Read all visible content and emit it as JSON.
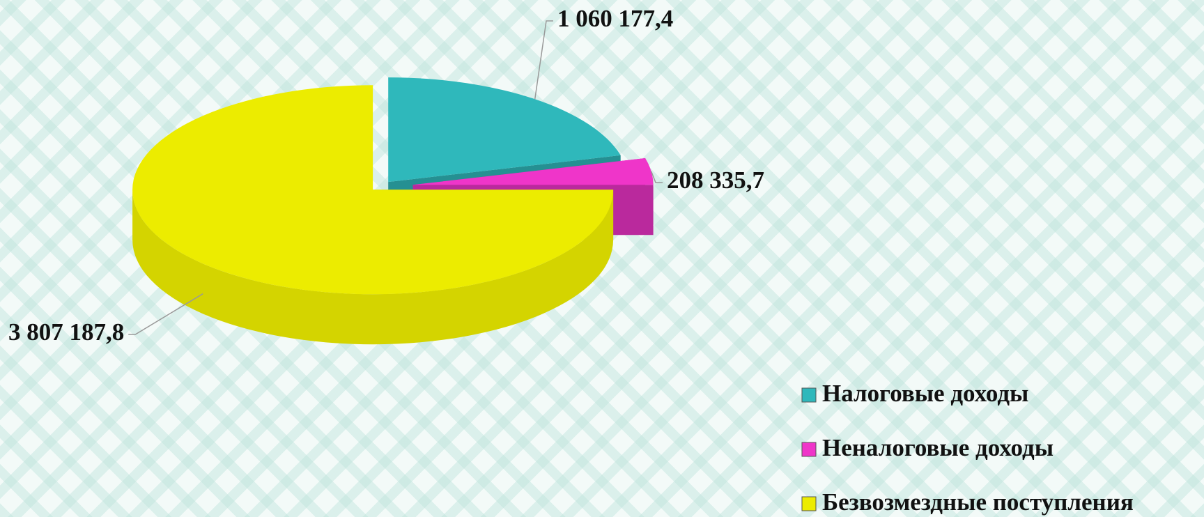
{
  "chart_data": {
    "type": "pie",
    "categories": [
      "Налоговые доходы",
      "Неналоговые доходы",
      "Безвозмездные поступления"
    ],
    "values": [
      1060177.4,
      208335.7,
      3807187.8
    ],
    "value_labels": [
      "1 060 177,4",
      "208 335,7",
      "3 807 187,8"
    ],
    "colors": [
      "#2fb8bb",
      "#ef35c9",
      "#ecec00"
    ],
    "legend": "bottom-right"
  }
}
